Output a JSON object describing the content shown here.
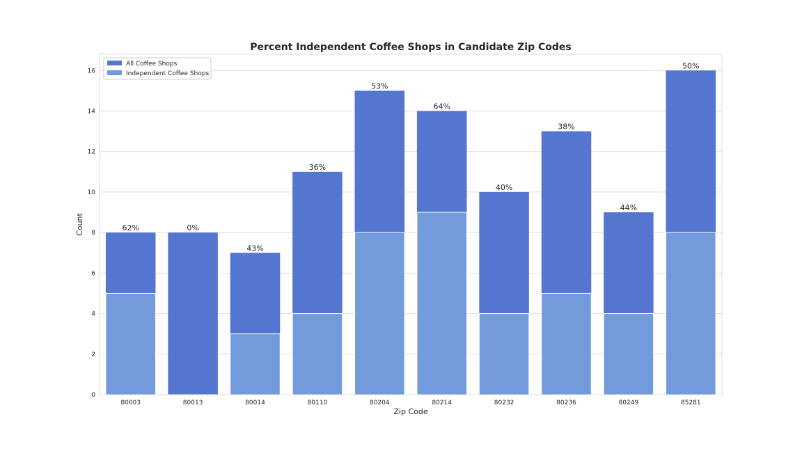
{
  "chart_data": {
    "type": "bar",
    "title": "Percent Independent Coffee Shops in Candidate Zip Codes",
    "xlabel": "Zip Code",
    "ylabel": "Count",
    "ylim": [
      0,
      16.8
    ],
    "yticks": [
      0,
      2,
      4,
      6,
      8,
      10,
      12,
      14,
      16
    ],
    "grid": true,
    "legend_position": "top-left",
    "categories": [
      "80003",
      "80013",
      "80014",
      "80110",
      "80204",
      "80214",
      "80232",
      "80236",
      "80249",
      "85281"
    ],
    "series": [
      {
        "name": "All Coffee Shops",
        "color": "#5475d0",
        "values": [
          8,
          8,
          7,
          11,
          15,
          14,
          10,
          13,
          9,
          16
        ]
      },
      {
        "name": "Independent Coffee Shops",
        "color": "#739adb",
        "values": [
          5,
          0,
          3,
          4,
          8,
          9,
          4,
          5,
          4,
          8
        ]
      }
    ],
    "data_labels": [
      "62%",
      "0%",
      "43%",
      "36%",
      "53%",
      "64%",
      "40%",
      "38%",
      "44%",
      "50%"
    ],
    "colors": {
      "grid": "#dddddd",
      "frame": "#dddddd",
      "text": "#262626"
    }
  }
}
